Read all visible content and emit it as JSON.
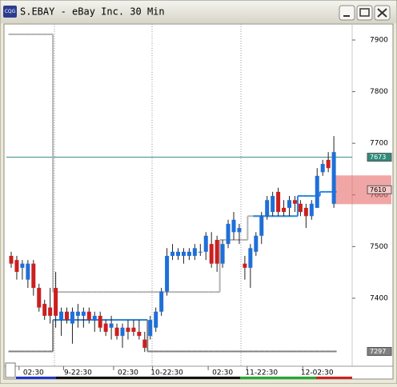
{
  "chart_data": {
    "type": "candlestick",
    "title": "S.EBAY - eBay Inc. 30 Min",
    "icon_text": "CQG",
    "categories": [
      null,
      null,
      null,
      null,
      "02:30",
      null,
      null,
      null,
      null,
      null,
      null,
      null,
      "9-22:30",
      null,
      null,
      null,
      null,
      null,
      null,
      null,
      null,
      "02:30",
      null,
      null,
      null,
      null,
      null,
      null,
      "10-22:30",
      null,
      null,
      null,
      null,
      null,
      null,
      null,
      null,
      null,
      "02:30",
      null,
      null,
      null,
      null,
      null,
      null,
      "11-22:30",
      null,
      null,
      null,
      null,
      null,
      null,
      null,
      null,
      null,
      "12-02:30",
      null,
      null,
      null
    ],
    "open": [
      7482,
      7474,
      7459,
      7436,
      7467,
      7420,
      7389,
      7382,
      7420,
      7358,
      7374,
      7351,
      7366,
      7366,
      7374,
      7358,
      7366,
      7351,
      7343,
      7343,
      7327,
      7343,
      7343,
      7335,
      7320,
      7327,
      7343,
      7374,
      7413,
      7482,
      7482,
      7482,
      7482,
      7482,
      7490,
      7490,
      7505,
      7513,
      7467,
      7505,
      7528,
      7528,
      7467,
      7459,
      7490,
      7521,
      7559,
      7567,
      7606,
      7575,
      7575,
      7590,
      7583,
      7575,
      7559,
      7575,
      7644,
      7668,
      7583
    ],
    "high": [
      7490,
      7482,
      7474,
      7474,
      7474,
      7428,
      7397,
      7420,
      7451,
      7382,
      7382,
      7382,
      7389,
      7382,
      7382,
      7374,
      7374,
      7358,
      7366,
      7351,
      7351,
      7358,
      7358,
      7358,
      7335,
      7366,
      7382,
      7420,
      7497,
      7505,
      7497,
      7497,
      7497,
      7505,
      7505,
      7528,
      7528,
      7521,
      7513,
      7552,
      7567,
      7544,
      7482,
      7505,
      7528,
      7567,
      7598,
      7606,
      7614,
      7590,
      7598,
      7598,
      7590,
      7583,
      7590,
      7652,
      7668,
      7683,
      7714
    ],
    "low": [
      7459,
      7436,
      7436,
      7420,
      7405,
      7374,
      7358,
      7351,
      7343,
      7327,
      7351,
      7312,
      7343,
      7343,
      7351,
      7335,
      7335,
      7327,
      7320,
      7320,
      7304,
      7320,
      7327,
      7320,
      7296,
      7320,
      7335,
      7366,
      7405,
      7474,
      7474,
      7467,
      7474,
      7474,
      7482,
      7474,
      7459,
      7451,
      7459,
      7497,
      7513,
      7505,
      7436,
      7420,
      7482,
      7505,
      7552,
      7559,
      7559,
      7559,
      7559,
      7567,
      7559,
      7536,
      7552,
      7575,
      7637,
      7644,
      7575
    ],
    "close": [
      7467,
      7451,
      7467,
      7467,
      7420,
      7382,
      7366,
      7366,
      7366,
      7374,
      7358,
      7374,
      7374,
      7374,
      7358,
      7366,
      7343,
      7335,
      7351,
      7327,
      7343,
      7335,
      7335,
      7327,
      7304,
      7358,
      7374,
      7413,
      7482,
      7490,
      7490,
      7490,
      7490,
      7497,
      7490,
      7521,
      7467,
      7467,
      7505,
      7544,
      7552,
      7536,
      7459,
      7497,
      7521,
      7559,
      7590,
      7598,
      7567,
      7567,
      7590,
      7583,
      7567,
      7559,
      7583,
      7637,
      7660,
      7652,
      7683
    ],
    "up_color": "#1f6fd8",
    "down_color": "#cc1f1f",
    "lines": [
      {
        "color": "#b4b4b4",
        "values": [
          7911,
          7911,
          7911,
          7911,
          7911,
          7911,
          7911,
          7911,
          7412,
          7412,
          7412,
          7412,
          7412,
          7412,
          7412,
          7412,
          7412,
          7412,
          7412,
          7412,
          7412,
          7412,
          7412,
          7412,
          7412,
          7412,
          7412,
          7412,
          7412,
          7412,
          7412,
          7412,
          7412,
          7412,
          7412,
          7412,
          7412,
          7412,
          7513,
          7513,
          7513,
          7513,
          7513,
          7559,
          7559,
          7559,
          7559,
          7559,
          7559,
          7559,
          7559,
          null,
          null,
          null,
          null,
          null,
          null,
          null,
          null
        ]
      },
      {
        "color": "#808080",
        "values": [
          7297,
          7297,
          7297,
          7297,
          7297,
          7297,
          7297,
          7297,
          7358,
          7358,
          7358,
          7358,
          7358,
          7358,
          7358,
          7358,
          7358,
          7358,
          7358,
          7358,
          7358,
          7358,
          7358,
          7358,
          7358,
          7297,
          7297,
          7297,
          7297,
          7297,
          7297,
          7297,
          7297,
          7297,
          7297,
          7297,
          7297,
          7297,
          7297,
          7297,
          7297,
          7297,
          7297,
          7297,
          7297,
          7297,
          7297,
          7297,
          7297,
          7297,
          7297,
          7297,
          7297,
          7297,
          7297,
          7297,
          7297,
          7297,
          7297
        ]
      },
      {
        "color": "#2a86e0",
        "values": [
          null,
          null,
          null,
          null,
          null,
          null,
          null,
          null,
          7358,
          7358,
          7358,
          7358,
          7358,
          7358,
          7358,
          7358,
          7358,
          7358,
          7358,
          7358,
          7358,
          7358,
          7358,
          7358,
          7358,
          null,
          null,
          null,
          null,
          null,
          null,
          null,
          null,
          null,
          null,
          null,
          null,
          null,
          null,
          null,
          null,
          null,
          null,
          null,
          7559,
          7559,
          7559,
          7559,
          7559,
          7559,
          7559,
          7559,
          7598,
          7598,
          7598,
          7598,
          7606,
          7606,
          7606
        ]
      }
    ],
    "price_tags": [
      {
        "value": 7673,
        "color": "#2e8b7a"
      },
      {
        "value": 7610,
        "color": "#e86a6a"
      },
      {
        "value": 7297,
        "color": "#808080"
      }
    ],
    "ylim": [
      7273,
      7931
    ],
    "yticks": [
      7400,
      7500,
      7600,
      7700,
      7800,
      7900
    ]
  }
}
